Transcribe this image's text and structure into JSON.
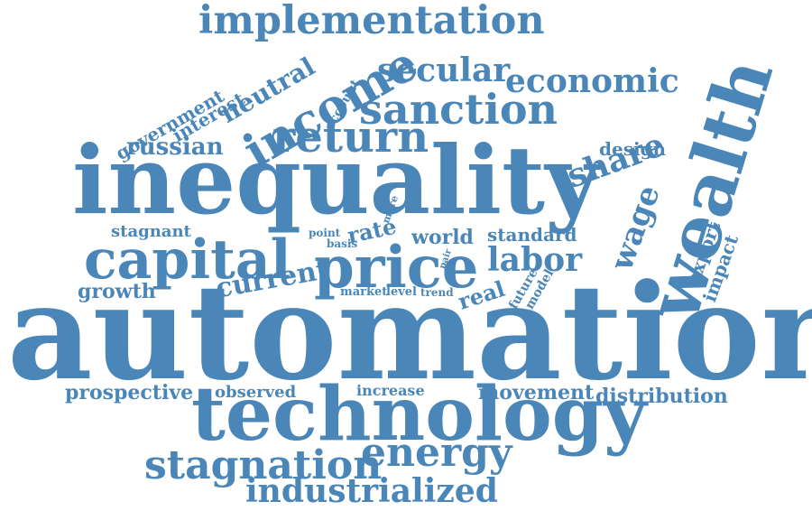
{
  "colors": {
    "word": "#4a86b8",
    "background": "#ffffff"
  },
  "words": [
    "implementation",
    "secular",
    "economic",
    "neutral",
    "income",
    "sanction",
    "government",
    "interest",
    "account",
    "return",
    "share",
    "design",
    "russian",
    "inequality",
    "wealth",
    "wage",
    "more",
    "stagnant",
    "point",
    "basis",
    "rate",
    "world",
    "standard",
    "capital",
    "price",
    "labor",
    "export",
    "impact",
    "pair",
    "future",
    "model",
    "growth",
    "current",
    "market",
    "level",
    "trend",
    "real",
    "automation",
    "prospective",
    "observed",
    "increase",
    "movement",
    "distribution",
    "technology",
    "energy",
    "stagnation",
    "industrialized"
  ]
}
